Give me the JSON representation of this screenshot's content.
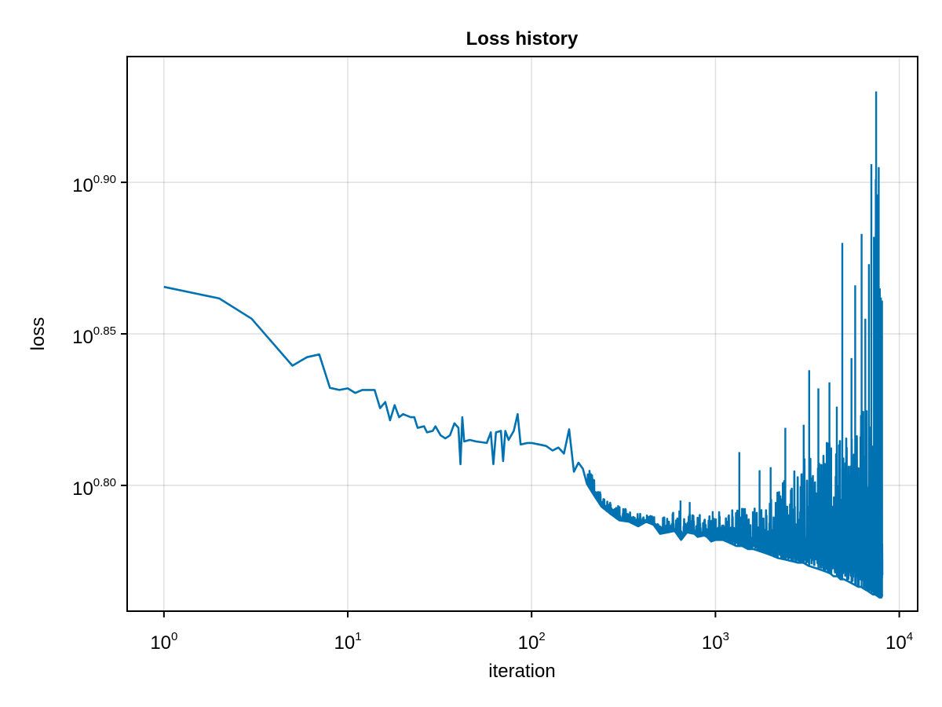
{
  "chart_data": {
    "type": "line",
    "title": "Loss history",
    "xlabel": "iteration",
    "ylabel": "loss",
    "xscale": "log10",
    "yscale": "log10",
    "xlim_log10": [
      -0.2,
      4.1
    ],
    "ylim_log10": [
      0.7585,
      0.9415
    ],
    "grid": true,
    "legend": "none",
    "colors": {
      "series": "#0072B2",
      "frame": "#000000",
      "grid": "#d9d9d9",
      "background": "#ffffff"
    },
    "xticks": [
      {
        "log10": 0,
        "base": "10",
        "exp": "0"
      },
      {
        "log10": 1,
        "base": "10",
        "exp": "1"
      },
      {
        "log10": 2,
        "base": "10",
        "exp": "2"
      },
      {
        "log10": 3,
        "base": "10",
        "exp": "3"
      },
      {
        "log10": 4,
        "base": "10",
        "exp": "4"
      }
    ],
    "yticks": [
      {
        "log10": 0.8,
        "base": "10",
        "exp": "0.80"
      },
      {
        "log10": 0.85,
        "base": "10",
        "exp": "0.85"
      },
      {
        "log10": 0.9,
        "base": "10",
        "exp": "0.90"
      }
    ],
    "series": [
      {
        "name": "loss",
        "color": "#0072B2",
        "points_log10": [
          [
            0.0,
            0.8655
          ],
          [
            0.301,
            0.8617
          ],
          [
            0.477,
            0.855
          ],
          [
            0.699,
            0.8395
          ],
          [
            0.778,
            0.8423
          ],
          [
            0.845,
            0.8432
          ],
          [
            0.903,
            0.8322
          ],
          [
            0.954,
            0.8315
          ],
          [
            1.0,
            0.832
          ],
          [
            1.041,
            0.8305
          ],
          [
            1.079,
            0.8315
          ],
          [
            1.146,
            0.8315
          ],
          [
            1.176,
            0.8255
          ],
          [
            1.204,
            0.8275
          ],
          [
            1.23,
            0.8215
          ],
          [
            1.255,
            0.8265
          ],
          [
            1.279,
            0.8225
          ],
          [
            1.301,
            0.8235
          ],
          [
            1.342,
            0.8225
          ],
          [
            1.362,
            0.8225
          ],
          [
            1.38,
            0.819
          ],
          [
            1.415,
            0.8195
          ],
          [
            1.431,
            0.8175
          ],
          [
            1.462,
            0.818
          ],
          [
            1.477,
            0.8195
          ],
          [
            1.505,
            0.8165
          ],
          [
            1.531,
            0.8155
          ],
          [
            1.556,
            0.8165
          ],
          [
            1.58,
            0.8205
          ],
          [
            1.602,
            0.819
          ],
          [
            1.613,
            0.807
          ],
          [
            1.623,
            0.8225
          ],
          [
            1.633,
            0.8145
          ],
          [
            1.663,
            0.815
          ],
          [
            1.699,
            0.8145
          ],
          [
            1.756,
            0.814
          ],
          [
            1.778,
            0.8175
          ],
          [
            1.792,
            0.807
          ],
          [
            1.806,
            0.8175
          ],
          [
            1.833,
            0.818
          ],
          [
            1.845,
            0.808
          ],
          [
            1.857,
            0.818
          ],
          [
            1.875,
            0.815
          ],
          [
            1.903,
            0.818
          ],
          [
            1.924,
            0.8235
          ],
          [
            1.94,
            0.8135
          ],
          [
            1.978,
            0.814
          ],
          [
            2.0,
            0.814
          ],
          [
            2.041,
            0.8135
          ],
          [
            2.079,
            0.813
          ],
          [
            2.114,
            0.8115
          ],
          [
            2.146,
            0.8125
          ],
          [
            2.176,
            0.8105
          ],
          [
            2.204,
            0.8185
          ],
          [
            2.23,
            0.8045
          ],
          [
            2.255,
            0.8075
          ],
          [
            2.279,
            0.8055
          ],
          [
            2.301,
            0.8005
          ],
          [
            2.342,
            0.7965
          ],
          [
            2.38,
            0.793
          ],
          [
            2.431,
            0.7905
          ],
          [
            2.477,
            0.7885
          ],
          [
            2.531,
            0.788
          ],
          [
            2.58,
            0.7865
          ],
          [
            2.623,
            0.788
          ],
          [
            2.663,
            0.787
          ],
          [
            2.699,
            0.784
          ],
          [
            2.74,
            0.7845
          ],
          [
            2.778,
            0.785
          ],
          [
            2.813,
            0.782
          ],
          [
            2.845,
            0.7845
          ],
          [
            2.886,
            0.784
          ],
          [
            2.903,
            0.783
          ],
          [
            2.94,
            0.7835
          ],
          [
            2.954,
            0.783
          ],
          [
            2.977,
            0.7815
          ],
          [
            3.0,
            0.782
          ],
          [
            3.041,
            0.782
          ],
          [
            3.079,
            0.781
          ],
          [
            3.114,
            0.78
          ],
          [
            3.146,
            0.78
          ],
          [
            3.176,
            0.779
          ],
          [
            3.204,
            0.779
          ],
          [
            3.23,
            0.7785
          ],
          [
            3.255,
            0.778
          ],
          [
            3.279,
            0.7775
          ],
          [
            3.301,
            0.777
          ],
          [
            3.342,
            0.776
          ],
          [
            3.38,
            0.7755
          ],
          [
            3.415,
            0.775
          ],
          [
            3.447,
            0.7745
          ],
          [
            3.477,
            0.7745
          ],
          [
            3.505,
            0.7735
          ],
          [
            3.531,
            0.773
          ],
          [
            3.556,
            0.7725
          ],
          [
            3.58,
            0.772
          ],
          [
            3.602,
            0.7715
          ],
          [
            3.623,
            0.771
          ],
          [
            3.643,
            0.77
          ],
          [
            3.663,
            0.77
          ],
          [
            3.681,
            0.769
          ],
          [
            3.699,
            0.769
          ],
          [
            3.716,
            0.7685
          ],
          [
            3.732,
            0.768
          ],
          [
            3.748,
            0.7675
          ],
          [
            3.763,
            0.767
          ],
          [
            3.778,
            0.7665
          ],
          [
            3.792,
            0.7665
          ],
          [
            3.806,
            0.766
          ],
          [
            3.819,
            0.7655
          ],
          [
            3.833,
            0.765
          ],
          [
            3.845,
            0.7645
          ],
          [
            3.857,
            0.764
          ],
          [
            3.869,
            0.764
          ],
          [
            3.881,
            0.7635
          ],
          [
            3.892,
            0.763
          ],
          [
            3.903,
            0.763
          ],
          [
            3.908,
            0.764
          ]
        ],
        "noise_upper_log10": [
          [
            2.3,
            0.808
          ],
          [
            2.4,
            0.795
          ],
          [
            2.5,
            0.7925
          ],
          [
            2.6,
            0.791
          ],
          [
            2.7,
            0.7905
          ],
          [
            2.8,
            0.7915
          ],
          [
            2.9,
            0.791
          ],
          [
            3.0,
            0.7915
          ],
          [
            3.1,
            0.793
          ],
          [
            3.2,
            0.7925
          ],
          [
            3.3,
            0.795
          ],
          [
            3.4,
            0.805
          ],
          [
            3.5,
            0.81
          ],
          [
            3.6,
            0.814
          ],
          [
            3.7,
            0.818
          ],
          [
            3.8,
            0.825
          ],
          [
            3.908,
            0.83
          ]
        ],
        "spikes_log10": [
          [
            2.81,
            0.795
          ],
          [
            2.86,
            0.7945
          ],
          [
            2.985,
            0.7915
          ],
          [
            3.13,
            0.811
          ],
          [
            3.24,
            0.805
          ],
          [
            3.3,
            0.806
          ],
          [
            3.38,
            0.819
          ],
          [
            3.48,
            0.82
          ],
          [
            3.51,
            0.838
          ],
          [
            3.56,
            0.832
          ],
          [
            3.62,
            0.834
          ],
          [
            3.66,
            0.826
          ],
          [
            3.69,
            0.88
          ],
          [
            3.74,
            0.842
          ],
          [
            3.76,
            0.866
          ],
          [
            3.795,
            0.883
          ],
          [
            3.815,
            0.855
          ],
          [
            3.835,
            0.873
          ],
          [
            3.848,
            0.906
          ],
          [
            3.862,
            0.882
          ],
          [
            3.872,
            0.901
          ],
          [
            3.874,
            0.93
          ],
          [
            3.88,
            0.896
          ],
          [
            3.888,
            0.905
          ],
          [
            3.894,
            0.865
          ],
          [
            3.9,
            0.862
          ],
          [
            3.906,
            0.861
          ]
        ]
      }
    ]
  }
}
